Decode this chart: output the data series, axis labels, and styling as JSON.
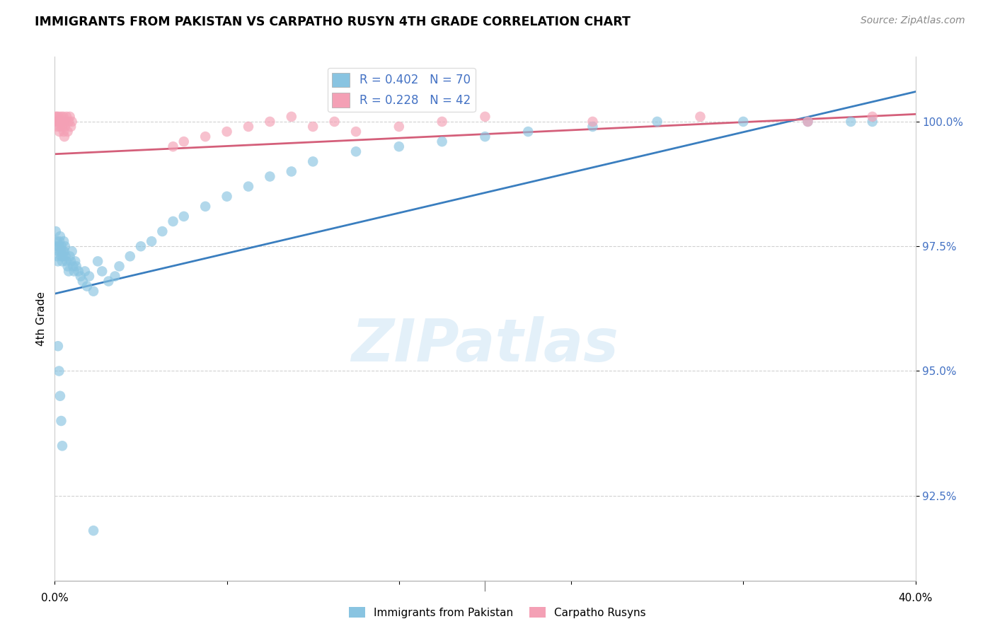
{
  "title": "IMMIGRANTS FROM PAKISTAN VS CARPATHO RUSYN 4TH GRADE CORRELATION CHART",
  "source": "Source: ZipAtlas.com",
  "ylabel": "4th Grade",
  "xlim": [
    0.0,
    40.0
  ],
  "ylim": [
    90.8,
    101.3
  ],
  "blue_color": "#89c4e1",
  "pink_color": "#f4a0b5",
  "blue_line_color": "#3a7ebf",
  "pink_line_color": "#d45f7a",
  "blue_trend_x": [
    0.0,
    40.0
  ],
  "blue_trend_y": [
    96.55,
    100.6
  ],
  "pink_trend_x": [
    0.0,
    40.0
  ],
  "pink_trend_y": [
    99.35,
    100.15
  ],
  "blue_scatter_x": [
    0.05,
    0.08,
    0.1,
    0.12,
    0.15,
    0.18,
    0.2,
    0.22,
    0.25,
    0.28,
    0.3,
    0.32,
    0.35,
    0.38,
    0.4,
    0.42,
    0.45,
    0.48,
    0.5,
    0.55,
    0.6,
    0.65,
    0.7,
    0.75,
    0.8,
    0.85,
    0.9,
    0.95,
    1.0,
    1.1,
    1.2,
    1.3,
    1.4,
    1.5,
    1.6,
    1.8,
    2.0,
    2.2,
    2.5,
    2.8,
    3.0,
    3.5,
    4.0,
    4.5,
    5.0,
    5.5,
    6.0,
    7.0,
    8.0,
    9.0,
    10.0,
    11.0,
    12.0,
    14.0,
    16.0,
    18.0,
    20.0,
    22.0,
    25.0,
    28.0,
    32.0,
    35.0,
    37.0,
    38.0,
    0.15,
    0.2,
    0.25,
    0.3,
    0.35,
    1.8
  ],
  "blue_scatter_y": [
    97.8,
    97.5,
    97.6,
    97.3,
    97.2,
    97.4,
    97.5,
    97.6,
    97.7,
    97.4,
    97.3,
    97.5,
    97.2,
    97.4,
    97.3,
    97.6,
    97.4,
    97.5,
    97.3,
    97.2,
    97.1,
    97.0,
    97.3,
    97.2,
    97.4,
    97.1,
    97.0,
    97.2,
    97.1,
    97.0,
    96.9,
    96.8,
    97.0,
    96.7,
    96.9,
    96.6,
    97.2,
    97.0,
    96.8,
    96.9,
    97.1,
    97.3,
    97.5,
    97.6,
    97.8,
    98.0,
    98.1,
    98.3,
    98.5,
    98.7,
    98.9,
    99.0,
    99.2,
    99.4,
    99.5,
    99.6,
    99.7,
    99.8,
    99.9,
    100.0,
    100.0,
    100.0,
    100.0,
    100.0,
    95.5,
    95.0,
    94.5,
    94.0,
    93.5,
    91.8
  ],
  "pink_scatter_x": [
    0.05,
    0.08,
    0.1,
    0.12,
    0.15,
    0.18,
    0.2,
    0.22,
    0.25,
    0.28,
    0.3,
    0.32,
    0.35,
    0.38,
    0.4,
    0.42,
    0.45,
    0.48,
    0.5,
    0.55,
    0.6,
    0.65,
    0.7,
    0.75,
    0.8,
    5.5,
    6.0,
    7.0,
    8.0,
    9.0,
    10.0,
    11.0,
    12.0,
    13.0,
    14.0,
    16.0,
    18.0,
    20.0,
    25.0,
    30.0,
    35.0,
    38.0
  ],
  "pink_scatter_y": [
    100.1,
    100.0,
    100.1,
    99.9,
    100.0,
    100.1,
    100.0,
    99.8,
    99.9,
    100.0,
    100.1,
    100.0,
    99.9,
    100.0,
    100.1,
    99.8,
    99.7,
    99.9,
    100.0,
    100.1,
    99.8,
    100.0,
    100.1,
    99.9,
    100.0,
    99.5,
    99.6,
    99.7,
    99.8,
    99.9,
    100.0,
    100.1,
    99.9,
    100.0,
    99.8,
    99.9,
    100.0,
    100.1,
    100.0,
    100.1,
    100.0,
    100.1
  ]
}
